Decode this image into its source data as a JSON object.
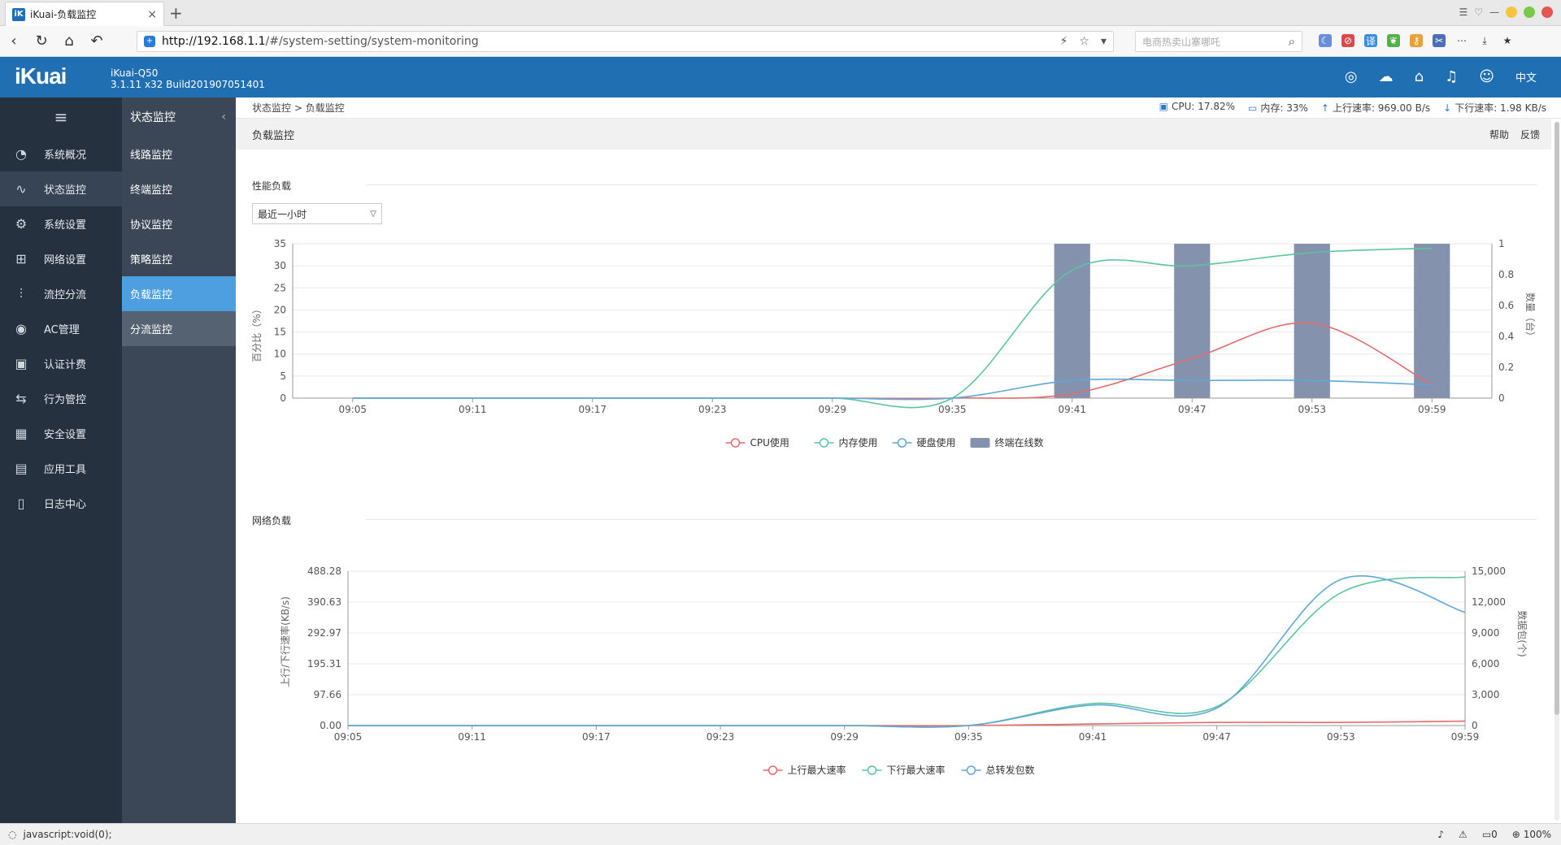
{
  "browser": {
    "tab_title": "iKuai-负载监控",
    "url_host": "http://192.168.1.1",
    "url_path": "/#/system-setting/system-monitoring",
    "search_placeholder": "电商热卖山寨哪吒",
    "status_text": "javascript:void(0);",
    "zoom": "100%",
    "download_count": "0"
  },
  "header": {
    "logo": "iKuai",
    "model": "iKuai-Q50",
    "version": "3.1.11 x32 Build201907051401",
    "lang": "中文"
  },
  "sidebar": {
    "items": [
      {
        "label": "系统概况",
        "icon": "dashboard-icon"
      },
      {
        "label": "状态监控",
        "icon": "pulse-icon"
      },
      {
        "label": "系统设置",
        "icon": "gear-icon"
      },
      {
        "label": "网络设置",
        "icon": "network-icon"
      },
      {
        "label": "流控分流",
        "icon": "sliders-icon"
      },
      {
        "label": "AC管理",
        "icon": "wifi-icon"
      },
      {
        "label": "认证计费",
        "icon": "id-card-icon"
      },
      {
        "label": "行为管控",
        "icon": "arrows-icon"
      },
      {
        "label": "安全设置",
        "icon": "firewall-icon"
      },
      {
        "label": "应用工具",
        "icon": "apps-icon"
      },
      {
        "label": "日志中心",
        "icon": "log-icon"
      }
    ]
  },
  "subnav": {
    "title": "状态监控",
    "items": [
      "线路监控",
      "终端监控",
      "协议监控",
      "策略监控",
      "负载监控",
      "分流监控"
    ]
  },
  "topline": {
    "breadcrumb_root": "状态监控",
    "breadcrumb_sep": ">",
    "breadcrumb_leaf": "负载监控",
    "cpu": "CPU: 17.82%",
    "mem": "内存: 33%",
    "up": "上行速率: 969.00 B/s",
    "down": "下行速率: 1.98 KB/s"
  },
  "page": {
    "title": "负载监控",
    "help": "帮助",
    "feedback": "反馈",
    "perf_section": "性能负载",
    "net_section": "网络负载",
    "range_select": "最近一小时"
  },
  "chart_data": [
    {
      "type": "line",
      "x": [
        "09:05",
        "09:11",
        "09:17",
        "09:23",
        "09:29",
        "09:35",
        "09:41",
        "09:47",
        "09:53",
        "09:59"
      ],
      "ylabel": "百分比（%）",
      "y2label": "数量（台）",
      "ylim": [
        0,
        35
      ],
      "y2lim": [
        0,
        1
      ],
      "yticks": [
        "0",
        "5",
        "10",
        "15",
        "20",
        "25",
        "30",
        "35"
      ],
      "y2ticks": [
        "0",
        "0.2",
        "0.4",
        "0.6",
        "0.8",
        "1"
      ],
      "series": [
        {
          "name": "CPU使用",
          "color": "#e46c6c",
          "values": [
            0,
            0,
            0,
            0,
            0,
            0,
            1,
            9,
            17,
            3
          ]
        },
        {
          "name": "内存使用",
          "color": "#5cc4a0",
          "values": [
            0,
            0,
            0,
            0,
            0,
            0,
            29,
            30,
            33,
            34
          ]
        },
        {
          "name": "硬盘使用",
          "color": "#5fa8d8",
          "values": [
            0,
            0,
            0,
            0,
            0,
            0,
            4,
            4,
            4,
            3
          ]
        }
      ],
      "bars": {
        "name": "终端在线数",
        "color": "#8592ad",
        "x": [
          "09:41",
          "09:47",
          "09:53",
          "09:59"
        ],
        "values": [
          1,
          1,
          1,
          1
        ]
      },
      "legend_position": "bottom-center"
    },
    {
      "type": "line",
      "x": [
        "09:05",
        "09:11",
        "09:17",
        "09:23",
        "09:29",
        "09:35",
        "09:41",
        "09:47",
        "09:53",
        "09:59"
      ],
      "ylabel": "上行/下行速率(KB/s)",
      "y2label": "数据包(个)",
      "ylim": [
        0,
        488.28
      ],
      "y2lim": [
        0,
        15000
      ],
      "yticks": [
        "0.00",
        "97.66",
        "195.31",
        "292.97",
        "390.63",
        "488.28"
      ],
      "y2ticks": [
        "0",
        "3,000",
        "6,000",
        "9,000",
        "12,000",
        "15,000"
      ],
      "series": [
        {
          "name": "上行最大速率",
          "color": "#e46c6c",
          "axis": "left",
          "values": [
            0,
            0,
            0,
            0,
            0,
            0,
            5,
            10,
            10,
            14
          ]
        },
        {
          "name": "下行最大速率",
          "color": "#5cc4a0",
          "axis": "left",
          "values": [
            0,
            0,
            0,
            0,
            0,
            0,
            70,
            60,
            420,
            470
          ]
        },
        {
          "name": "总转发包数",
          "color": "#5fa8d8",
          "axis": "right",
          "values": [
            0,
            0,
            0,
            0,
            0,
            0,
            2000,
            1700,
            14200,
            11000
          ]
        }
      ],
      "legend_position": "bottom-center"
    }
  ]
}
